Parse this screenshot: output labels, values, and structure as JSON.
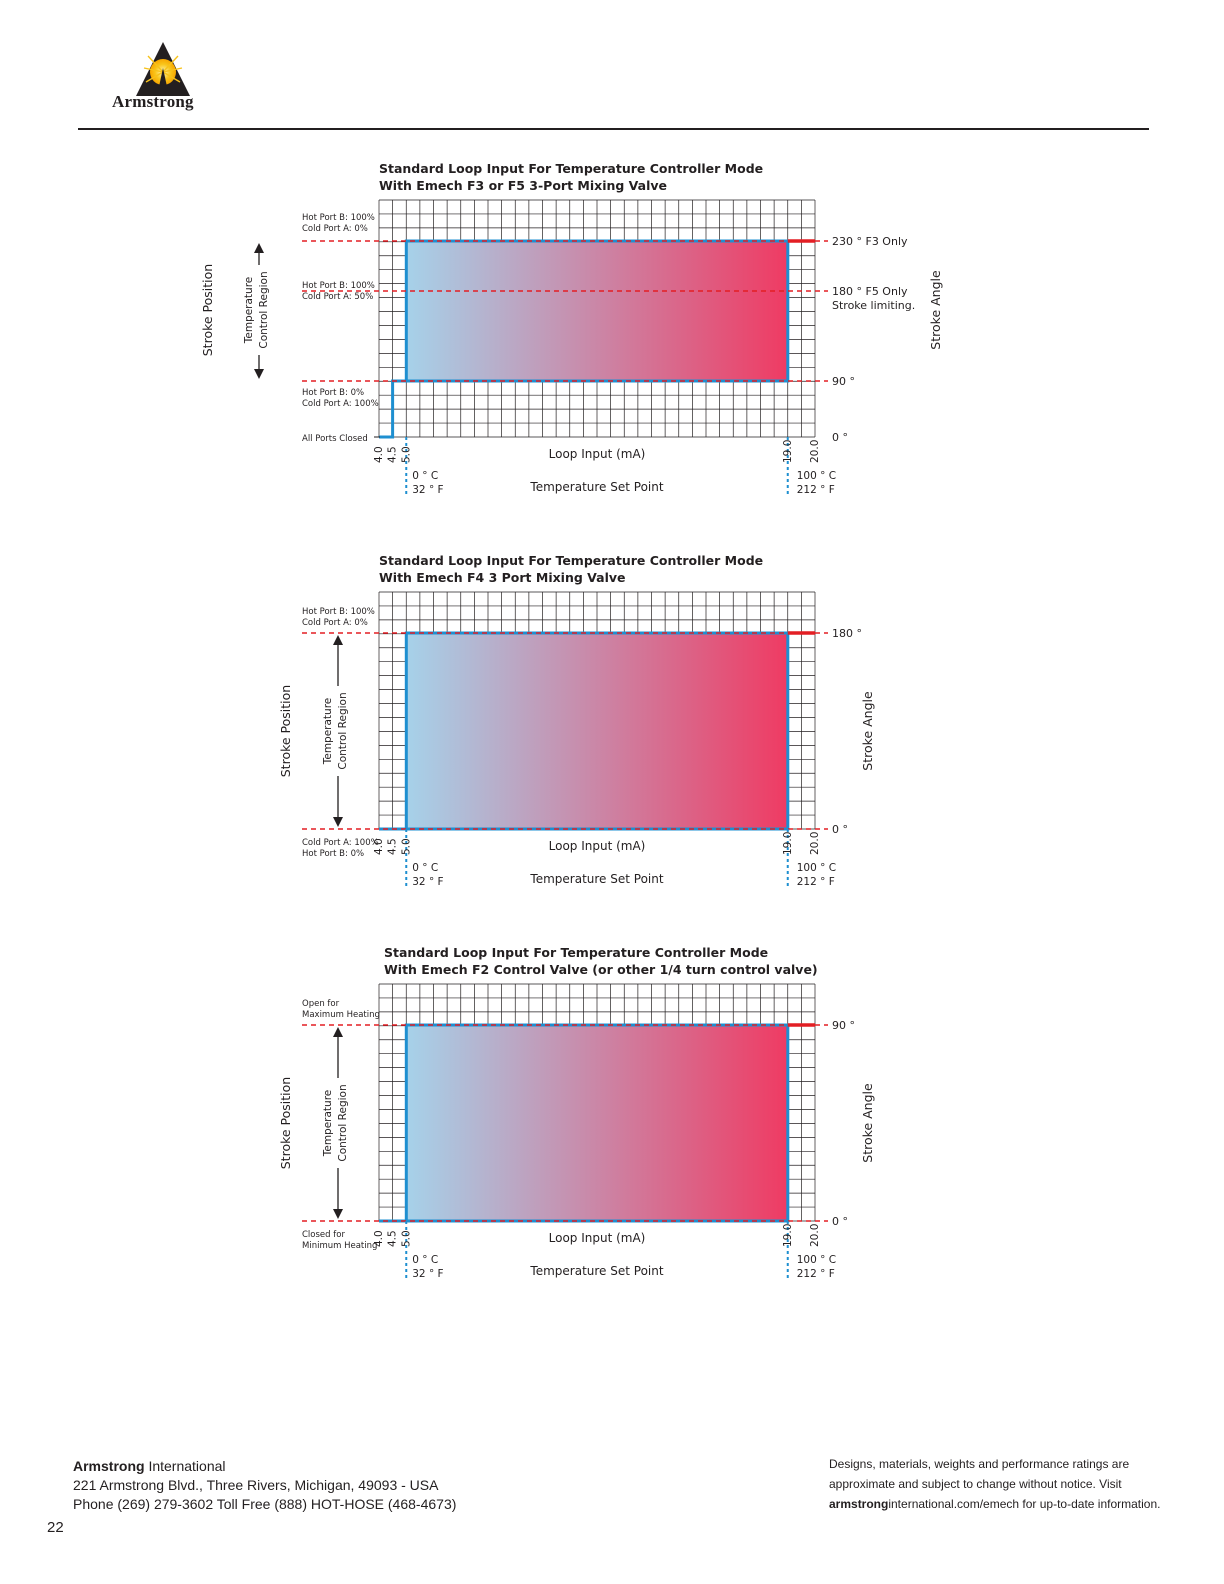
{
  "header": {
    "logo_text": "Armstrong"
  },
  "colors": {
    "grid": "#231f20",
    "outline": "#1e8fd0",
    "gradient_start": "#a6d2ea",
    "gradient_end": "#ef3b63",
    "dashed": "#e31e24",
    "extension": "#e31e24"
  },
  "chart_data": [
    {
      "type": "step-area",
      "title_line1": "Standard Loop Input For Temperature Controller Mode",
      "title_line2": "With Emech F3 or F5 3-Port Mixing Valve",
      "xlabel": "Loop Input (mA)",
      "xlabel2": "Temperature Set Point",
      "ylabel_left": "Stroke Position",
      "ylabel_right": "Stroke Angle",
      "region_label_1": "Temperature",
      "region_label_2": "Control Region",
      "xlim": [
        4.0,
        20.0
      ],
      "ylim": [
        0,
        260
      ],
      "x_ticks": [
        "4.0",
        "4.5",
        "5.0",
        "19.0",
        "20.0"
      ],
      "x_tick_values": [
        4.0,
        4.5,
        5.0,
        19.0,
        20.0
      ],
      "temp_low_c": "0 ° C",
      "temp_low_f": "32 ° F",
      "temp_high_c": "100 ° C",
      "temp_high_f": "212 ° F",
      "step_path": [
        [
          4.0,
          0
        ],
        [
          4.5,
          0
        ],
        [
          4.5,
          90
        ],
        [
          5.0,
          90
        ],
        [
          5.0,
          230
        ],
        [
          19.0,
          230
        ],
        [
          19.0,
          90
        ],
        [
          5.0,
          90
        ]
      ],
      "region_bottom": 90,
      "region_top": 230,
      "extension": {
        "x0": 19.0,
        "x1": 20.0,
        "y": 230
      },
      "ref_lines": [
        {
          "y": 230,
          "label": "230 ° F3 Only",
          "label2": "",
          "left_top": "Hot Port B:  100%",
          "left_bottom": "Cold Port A: 0%"
        },
        {
          "y": 180,
          "label": "180 ° F5 Only",
          "label2": "Stroke limiting.",
          "left_top": "Hot Port B:  100%",
          "left_bottom": "Cold Port A: 50%"
        },
        {
          "y": 90,
          "label": "90 °",
          "label2": "",
          "left_top": "Hot Port B:  0%",
          "left_bottom": "Cold Port A: 100%"
        },
        {
          "y": 0,
          "label": "0 °",
          "label2": "",
          "left_top": "All Ports Closed",
          "left_bottom": ""
        }
      ]
    },
    {
      "type": "step-area",
      "title_line1": "Standard Loop Input For Temperature Controller Mode",
      "title_line2": "With Emech F4 3 Port Mixing Valve",
      "xlabel": "Loop Input (mA)",
      "xlabel2": "Temperature Set Point",
      "ylabel_left": "Stroke Position",
      "ylabel_right": "Stroke Angle",
      "region_label_1": "Temperature",
      "region_label_2": "Control Region",
      "xlim": [
        4.0,
        20.0
      ],
      "ylim": [
        0,
        180
      ],
      "x_ticks": [
        "4.0",
        "4.5",
        "5.0",
        "19.0",
        "20.0"
      ],
      "x_tick_values": [
        4.0,
        4.5,
        5.0,
        19.0,
        20.0
      ],
      "temp_low_c": "0 ° C",
      "temp_low_f": "32 ° F",
      "temp_high_c": "100 ° C",
      "temp_high_f": "212 ° F",
      "step_path": [
        [
          4.0,
          0
        ],
        [
          5.0,
          0
        ],
        [
          5.0,
          180
        ],
        [
          19.0,
          180
        ],
        [
          19.0,
          0
        ],
        [
          5.0,
          0
        ]
      ],
      "region_bottom": 0,
      "region_top": 180,
      "extension": {
        "x0": 19.0,
        "x1": 20.0,
        "y": 180
      },
      "ref_lines": [
        {
          "y": 180,
          "label": "180 °",
          "label2": "",
          "left_top": "Hot Port B:  100%",
          "left_bottom": "Cold Port A: 0%"
        },
        {
          "y": 0,
          "label": "0 °",
          "label2": "",
          "left_top": "Cold Port A: 100%",
          "left_bottom": "Hot Port B:   0%"
        }
      ]
    },
    {
      "type": "step-area",
      "title_line1": "Standard Loop Input For Temperature Controller Mode",
      "title_line2": "With Emech F2 Control Valve (or other 1/4 turn control valve)",
      "xlabel": "Loop Input (mA)",
      "xlabel2": "Temperature Set Point",
      "ylabel_left": "Stroke Position",
      "ylabel_right": "Stroke Angle",
      "region_label_1": "Temperature",
      "region_label_2": "Control Region",
      "xlim": [
        4.0,
        20.0
      ],
      "ylim": [
        0,
        90
      ],
      "x_ticks": [
        "4.0",
        "4.5",
        "5.0",
        "19.0",
        "20.0"
      ],
      "x_tick_values": [
        4.0,
        4.5,
        5.0,
        19.0,
        20.0
      ],
      "temp_low_c": "0 ° C",
      "temp_low_f": "32 ° F",
      "temp_high_c": "100 ° C",
      "temp_high_f": "212 ° F",
      "step_path": [
        [
          4.0,
          0
        ],
        [
          5.0,
          0
        ],
        [
          5.0,
          90
        ],
        [
          19.0,
          90
        ],
        [
          19.0,
          0
        ],
        [
          5.0,
          0
        ]
      ],
      "region_bottom": 0,
      "region_top": 90,
      "extension": {
        "x0": 19.0,
        "x1": 20.0,
        "y": 90
      },
      "ref_lines": [
        {
          "y": 90,
          "label": "90 °",
          "label2": "",
          "left_top": "Open for",
          "left_bottom": "Maximum Heating"
        },
        {
          "y": 0,
          "label": "0 °",
          "label2": "",
          "left_top": "Closed for",
          "left_bottom": "Minimum Heating"
        }
      ]
    }
  ],
  "footer": {
    "company_bold": "Armstrong",
    "company_rest": " International",
    "address": "221 Armstrong Blvd., Three Rivers, Michigan, 49093 - USA",
    "phone": "Phone (269) 279-3602 Toll Free (888) HOT-HOSE (468-4673)",
    "page_number": "22",
    "disclaimer_1": "Designs, materials, weights and performance ratings are",
    "disclaimer_2": "approximate and subject to change without notice. Visit",
    "disclaimer_3_bold": "armstrong",
    "disclaimer_3_rest": "international.com/emech for up-to-date information."
  }
}
